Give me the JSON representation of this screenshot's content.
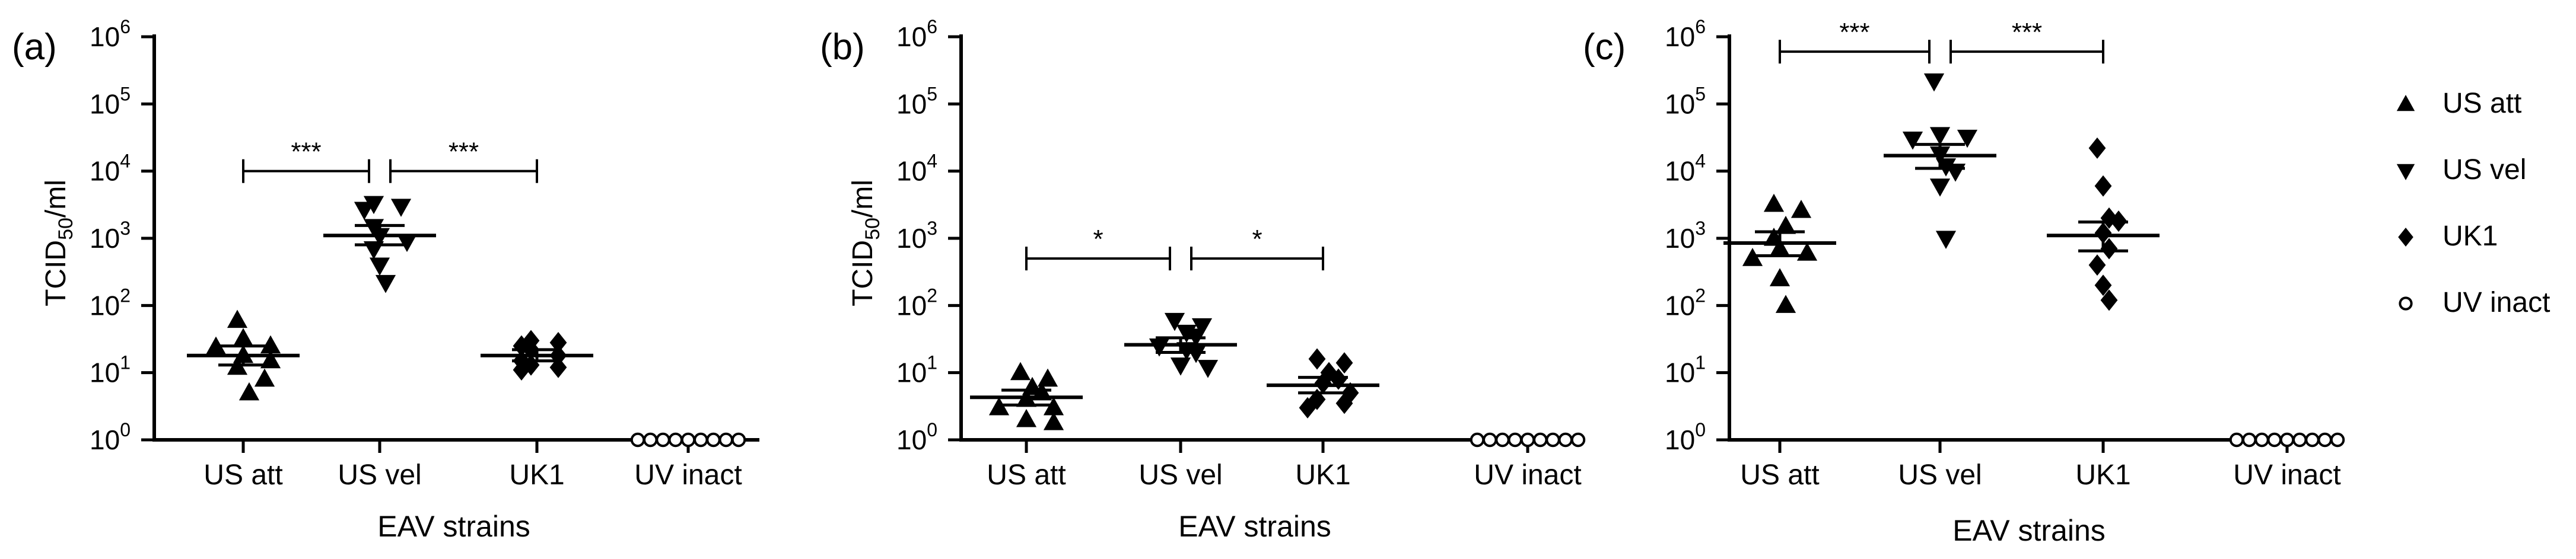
{
  "chart_data": [
    {
      "type": "scatter",
      "panel_label": "(a)",
      "xlabel": "EAV strains",
      "ylabel": "TCID50/ml",
      "yscale": "log",
      "ylim": [
        1,
        1000000
      ],
      "categories": [
        "US att",
        "US vel",
        "UK1",
        "UV inact"
      ],
      "series": [
        {
          "name": "US att",
          "marker": "triangle-up",
          "mean": 18,
          "sem": [
            13,
            25
          ],
          "values": [
            60,
            32,
            25,
            24,
            18,
            15,
            12,
            8,
            5
          ]
        },
        {
          "name": "US vel",
          "marker": "triangle-down",
          "mean": 1100,
          "sem": [
            800,
            1550
          ],
          "values": [
            3300,
            3000,
            2700,
            1500,
            1100,
            900,
            700,
            400,
            220
          ]
        },
        {
          "name": "UK1",
          "marker": "diamond",
          "mean": 18,
          "sem": [
            15,
            22
          ],
          "values": [
            30,
            28,
            25,
            22,
            18,
            15,
            13,
            12,
            11
          ]
        },
        {
          "name": "UV inact",
          "marker": "circle-open",
          "mean": 1,
          "sem": [
            1,
            1
          ],
          "values": [
            1,
            1,
            1,
            1,
            1,
            1,
            1,
            1,
            1
          ]
        }
      ],
      "significance": [
        {
          "from": "US att",
          "to": "US vel",
          "label": "***",
          "y": 10000
        },
        {
          "from": "US vel",
          "to": "UK1",
          "label": "***",
          "y": 10000
        }
      ]
    },
    {
      "type": "scatter",
      "panel_label": "(b)",
      "xlabel": "EAV strains",
      "ylabel": "TCID50/ml",
      "yscale": "log",
      "ylim": [
        1,
        1000000
      ],
      "categories": [
        "US att",
        "US vel",
        "UK1",
        "UV inact"
      ],
      "series": [
        {
          "name": "US att",
          "marker": "triangle-up",
          "mean": 4.3,
          "sem": [
            3.3,
            5.5
          ],
          "values": [
            10,
            8,
            6,
            5,
            4,
            3,
            3,
            2,
            1.8
          ]
        },
        {
          "name": "US vel",
          "marker": "triangle-down",
          "mean": 26,
          "sem": [
            20,
            33
          ],
          "values": [
            60,
            50,
            40,
            35,
            25,
            22,
            20,
            13,
            12
          ]
        },
        {
          "name": "UK1",
          "marker": "diamond",
          "mean": 6.5,
          "sem": [
            5,
            8.5
          ],
          "values": [
            16,
            14,
            10,
            8,
            7,
            5,
            4,
            3.5,
            3
          ]
        },
        {
          "name": "UV inact",
          "marker": "circle-open",
          "mean": 1,
          "sem": [
            1,
            1
          ],
          "values": [
            1,
            1,
            1,
            1,
            1,
            1,
            1,
            1,
            1
          ]
        }
      ],
      "significance": [
        {
          "from": "US att",
          "to": "US vel",
          "label": "*",
          "y": 500
        },
        {
          "from": "US vel",
          "to": "UK1",
          "label": "*",
          "y": 500
        }
      ]
    },
    {
      "type": "scatter",
      "panel_label": "(c)",
      "xlabel": "EAV strains",
      "ylabel": "",
      "yscale": "log",
      "ylim": [
        1,
        1000000
      ],
      "categories": [
        "US att",
        "US vel",
        "UK1",
        "UV inact"
      ],
      "series": [
        {
          "name": "US att",
          "marker": "triangle-up",
          "mean": 850,
          "sem": [
            550,
            1250
          ],
          "values": [
            3200,
            2600,
            1500,
            1000,
            700,
            600,
            500,
            250,
            100
          ]
        },
        {
          "name": "US vel",
          "marker": "triangle-down",
          "mean": 17000,
          "sem": [
            11000,
            25000
          ],
          "values": [
            220000,
            35000,
            32000,
            30000,
            18000,
            12000,
            10000,
            6000,
            1000
          ]
        },
        {
          "name": "UK1",
          "marker": "diamond",
          "mean": 1100,
          "sem": [
            650,
            1750
          ],
          "values": [
            22000,
            6000,
            2000,
            1800,
            1200,
            700,
            400,
            200,
            120
          ]
        },
        {
          "name": "UV inact",
          "marker": "circle-open",
          "mean": 1,
          "sem": [
            1,
            1
          ],
          "values": [
            1,
            1,
            1,
            1,
            1,
            1,
            1,
            1,
            1
          ]
        }
      ],
      "significance": [
        {
          "from": "US att",
          "to": "US vel",
          "label": "***",
          "y": 600000
        },
        {
          "from": "US vel",
          "to": "UK1",
          "label": "***",
          "y": 600000
        }
      ]
    }
  ],
  "legend": {
    "position": "right",
    "entries": [
      {
        "label": "US att",
        "marker": "triangle-up"
      },
      {
        "label": "US vel",
        "marker": "triangle-down"
      },
      {
        "label": "UK1",
        "marker": "diamond"
      },
      {
        "label": "UV inact",
        "marker": "circle-open"
      }
    ]
  }
}
